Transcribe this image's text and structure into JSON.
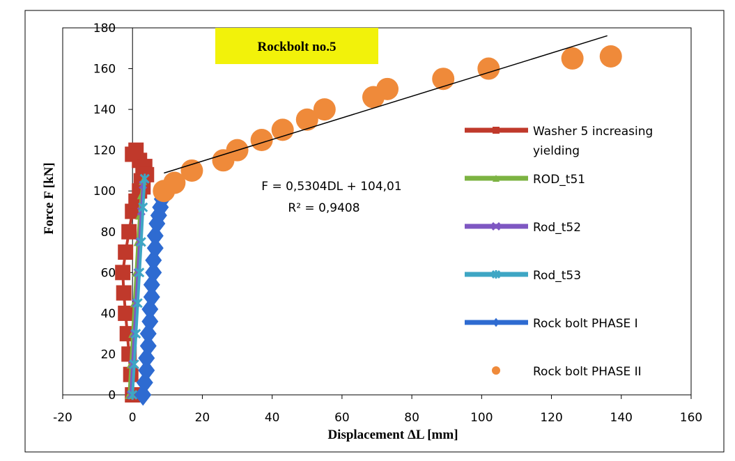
{
  "chart_data": {
    "type": "scatter",
    "title": "Rockbolt no.5",
    "title_box_color": "#f2f20a",
    "xlabel": "Displacement ΔL [mm]",
    "ylabel": "Force F [kN]",
    "xlim": [
      -20,
      160
    ],
    "ylim": [
      0,
      180
    ],
    "xticks": [
      "-20",
      "0",
      "20",
      "40",
      "60",
      "80",
      "100",
      "120",
      "140",
      "160"
    ],
    "yticks": [
      "0",
      "20",
      "40",
      "60",
      "80",
      "100",
      "120",
      "140",
      "160",
      "180"
    ],
    "grid": false,
    "legend_position": "right",
    "trendline": {
      "equation": "F = 0,5304DL + 104,01",
      "r_squared": "R² = 0,9408",
      "slope": 0.5304,
      "intercept": 104.01,
      "x_range": [
        9,
        136
      ],
      "color": "#000000"
    },
    "series": [
      {
        "name": "Washer 5 increasing yielding",
        "color": "#c0392b",
        "marker": "square",
        "x": [
          0,
          -0.5,
          -1,
          -1.5,
          -2,
          -2.5,
          -2.8,
          -2,
          -1,
          0,
          1,
          2,
          2.5,
          3,
          2,
          1,
          0,
          3.5,
          4,
          3
        ],
        "y": [
          0,
          10,
          20,
          30,
          40,
          50,
          60,
          70,
          80,
          90,
          95,
          100,
          105,
          110,
          115,
          120,
          118,
          112,
          108,
          102
        ]
      },
      {
        "name": "ROD_t51",
        "color": "#7cb342",
        "marker": "triangle",
        "x": [
          -1,
          -0.5,
          0,
          0.5,
          1,
          1.5,
          2,
          2.5,
          3
        ],
        "y": [
          0,
          15,
          30,
          45,
          60,
          75,
          88,
          98,
          105
        ]
      },
      {
        "name": "Rod_t52",
        "color": "#7e57c2",
        "marker": "x",
        "x": [
          -0.5,
          0,
          0.5,
          1,
          1.5,
          2,
          2.5,
          3
        ],
        "y": [
          0,
          15,
          30,
          45,
          60,
          75,
          90,
          103
        ]
      },
      {
        "name": "Rod_t53",
        "color": "#3ea6c4",
        "marker": "star",
        "x": [
          0,
          0.5,
          1,
          1.5,
          2,
          2.5,
          3,
          3.5
        ],
        "y": [
          0,
          15,
          30,
          45,
          60,
          75,
          92,
          106
        ]
      },
      {
        "name": "Rock bolt PHASE I",
        "color": "#2e6bd1",
        "marker": "diamond",
        "x": [
          3,
          3.5,
          4,
          4,
          4.5,
          4.5,
          5,
          5,
          5.5,
          5.5,
          6,
          6,
          6.5,
          6.5,
          7,
          7.5,
          8,
          8.5,
          9
        ],
        "y": [
          0,
          6,
          12,
          18,
          24,
          30,
          36,
          42,
          48,
          54,
          60,
          66,
          72,
          78,
          84,
          88,
          92,
          96,
          100
        ]
      },
      {
        "name": "Rock bolt PHASE II",
        "color": "#ef8a3a",
        "marker": "circle",
        "x": [
          9,
          12,
          17,
          26,
          30,
          37,
          43,
          50,
          55,
          69,
          73,
          89,
          102,
          126,
          137
        ],
        "y": [
          100,
          104,
          110,
          115,
          120,
          125,
          130,
          135,
          140,
          146,
          150,
          155,
          160,
          165,
          166
        ]
      }
    ]
  }
}
